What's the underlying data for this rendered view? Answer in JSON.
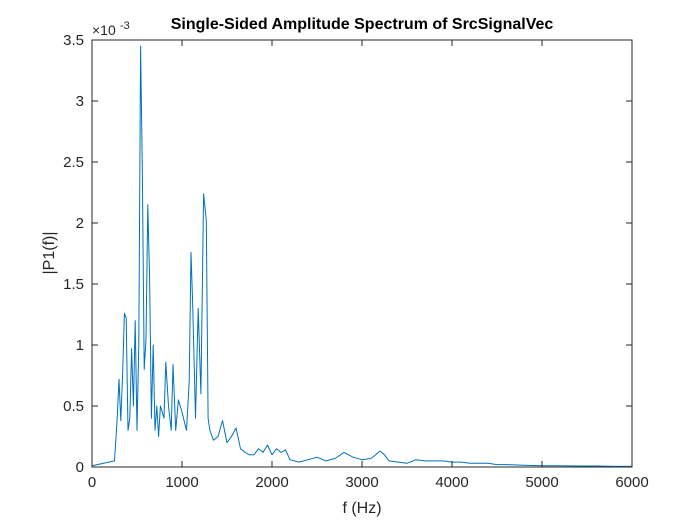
{
  "chart_data": {
    "type": "line",
    "title": "Single-Sided Amplitude Spectrum of SrcSignalVec",
    "xlabel": "f (Hz)",
    "ylabel": "|P1(f)|",
    "y_exponent_label": "×10",
    "y_exponent_value": "-3",
    "xlim": [
      0,
      6000
    ],
    "ylim": [
      0,
      3.5
    ],
    "y_scale_factor": 0.001,
    "xticks": [
      0,
      1000,
      2000,
      3000,
      4000,
      5000,
      6000
    ],
    "xtick_labels": [
      "0",
      "1000",
      "2000",
      "3000",
      "4000",
      "5000",
      "6000"
    ],
    "yticks": [
      0,
      0.5,
      1,
      1.5,
      2,
      2.5,
      3,
      3.5
    ],
    "ytick_labels": [
      "0",
      "0.5",
      "1",
      "1.5",
      "2",
      "2.5",
      "3",
      "3.5"
    ],
    "grid": false,
    "series_color": "#0072BD",
    "series": [
      {
        "x": [
          0,
          250,
          280,
          300,
          320,
          340,
          360,
          380,
          400,
          420,
          440,
          460,
          480,
          500,
          520,
          540,
          560,
          580,
          600,
          620,
          640,
          660,
          680,
          700,
          720,
          740,
          760,
          800,
          820,
          850,
          880,
          900,
          930,
          960,
          1000,
          1050,
          1080,
          1100,
          1120,
          1150,
          1180,
          1210,
          1240,
          1270,
          1290,
          1310,
          1350,
          1400,
          1450,
          1500,
          1550,
          1600,
          1650,
          1700,
          1750,
          1800,
          1850,
          1900,
          1950,
          2000,
          2050,
          2100,
          2150,
          2200,
          2300,
          2400,
          2500,
          2600,
          2700,
          2800,
          2900,
          3000,
          3100,
          3200,
          3250,
          3300,
          3400,
          3500,
          3600,
          3700,
          3800,
          3900,
          4000,
          4100,
          4200,
          4300,
          4400,
          4500,
          4600,
          4800,
          5000,
          5200,
          5400,
          5600,
          5800,
          6000
        ],
        "values": [
          0.01,
          0.05,
          0.4,
          0.72,
          0.38,
          0.76,
          1.26,
          1.22,
          0.3,
          0.4,
          0.97,
          0.5,
          1.2,
          0.3,
          1.0,
          3.45,
          2.38,
          0.8,
          1.05,
          2.15,
          1.55,
          0.4,
          1.0,
          0.3,
          0.5,
          0.25,
          0.5,
          0.4,
          0.86,
          0.5,
          0.3,
          0.84,
          0.3,
          0.55,
          0.45,
          0.3,
          0.7,
          1.76,
          1.3,
          0.4,
          1.3,
          0.6,
          2.24,
          2.02,
          0.4,
          0.3,
          0.22,
          0.25,
          0.38,
          0.2,
          0.25,
          0.32,
          0.15,
          0.12,
          0.1,
          0.1,
          0.15,
          0.12,
          0.18,
          0.1,
          0.15,
          0.12,
          0.14,
          0.06,
          0.04,
          0.06,
          0.08,
          0.05,
          0.07,
          0.12,
          0.08,
          0.06,
          0.07,
          0.13,
          0.1,
          0.05,
          0.04,
          0.03,
          0.06,
          0.05,
          0.05,
          0.05,
          0.04,
          0.04,
          0.03,
          0.03,
          0.03,
          0.02,
          0.02,
          0.015,
          0.01,
          0.01,
          0.008,
          0.008,
          0.005,
          0.005
        ]
      }
    ]
  }
}
